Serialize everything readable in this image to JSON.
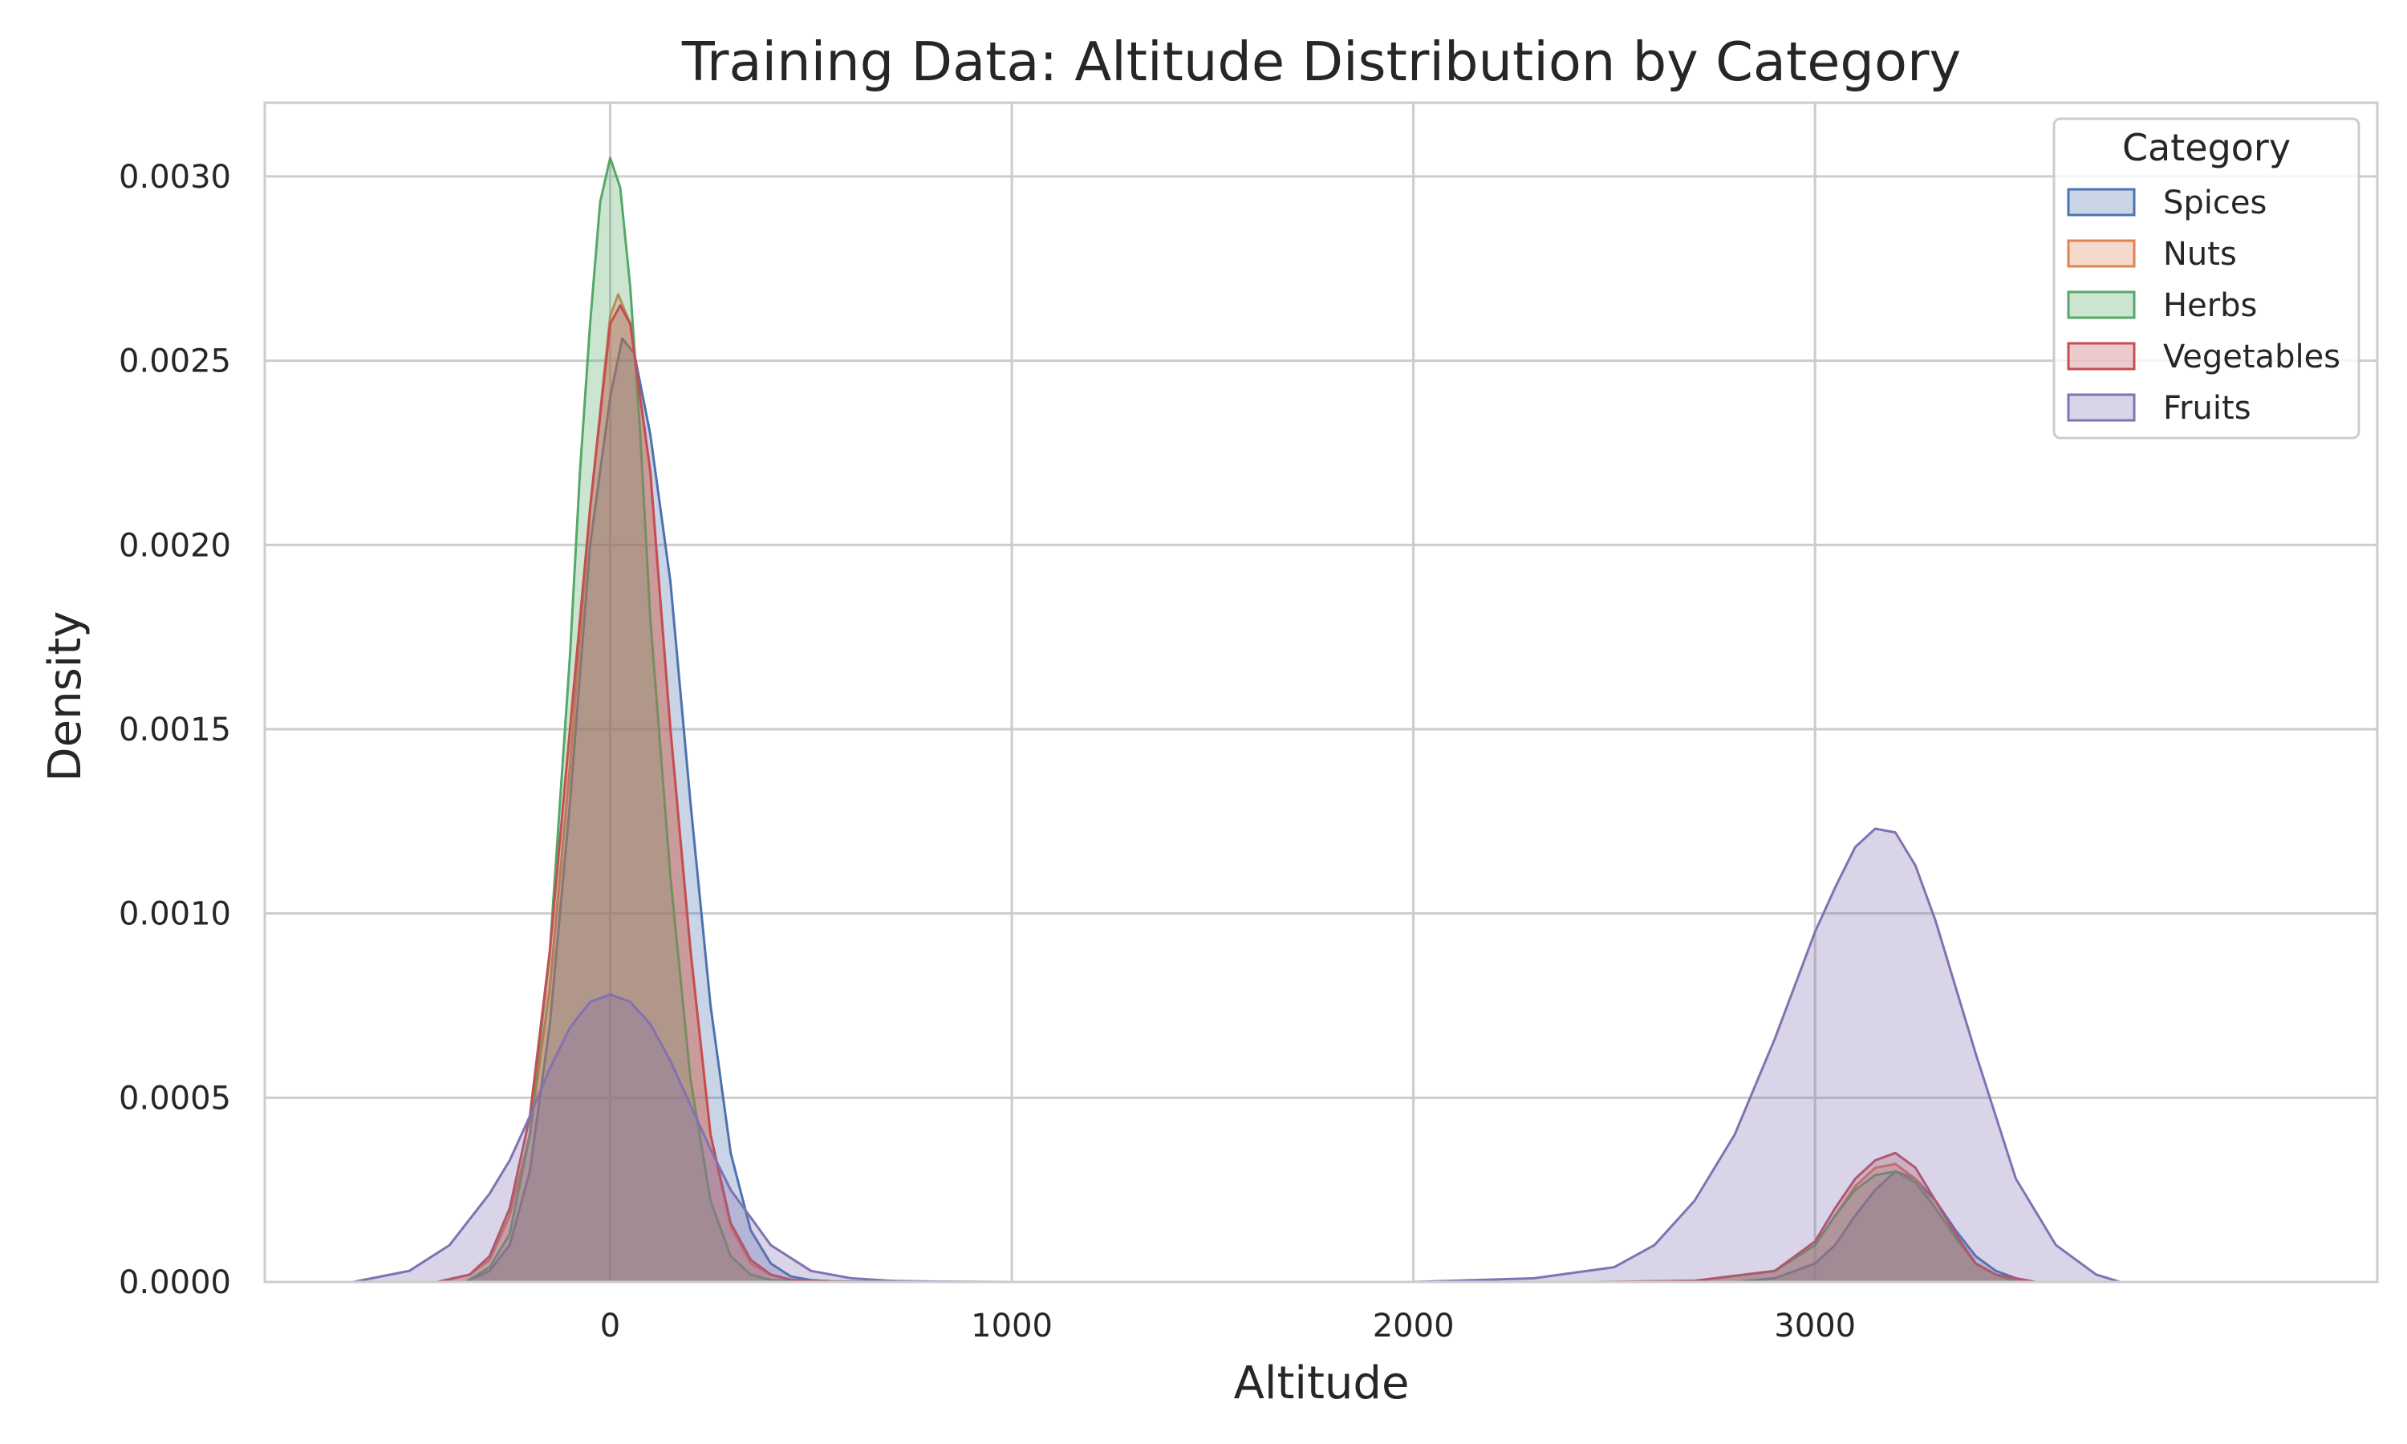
{
  "chart_data": {
    "type": "area",
    "title": "Training Data: Altitude Distribution by Category",
    "xlabel": "Altitude",
    "ylabel": "Density",
    "xlim": [
      -860,
      4400
    ],
    "ylim": [
      0,
      0.0032
    ],
    "x_ticks": [
      0,
      1000,
      2000,
      3000
    ],
    "x_tick_labels": [
      "0",
      "1000",
      "2000",
      "3000"
    ],
    "y_ticks": [
      0,
      0.0005,
      0.001,
      0.0015,
      0.002,
      0.0025,
      0.003
    ],
    "y_tick_labels": [
      "0.0000",
      "0.0005",
      "0.0010",
      "0.0015",
      "0.0020",
      "0.0025",
      "0.0030"
    ],
    "grid": true,
    "legend": {
      "title": "Category",
      "position": "top-right"
    },
    "series": [
      {
        "name": "Spices",
        "color": "#4c72b0",
        "x": [
          -360,
          -300,
          -250,
          -200,
          -150,
          -100,
          -50,
          0,
          30,
          60,
          100,
          150,
          200,
          250,
          300,
          350,
          400,
          450,
          500,
          550,
          600,
          700,
          800,
          900,
          1000,
          2400,
          2600,
          2800,
          2900,
          3000,
          3050,
          3100,
          3150,
          3200,
          3250,
          3300,
          3350,
          3400,
          3450,
          3500,
          3520
        ],
        "y": [
          0,
          3e-05,
          0.0001,
          0.0003,
          0.0007,
          0.0013,
          0.002,
          0.0024,
          0.00256,
          0.00252,
          0.0023,
          0.0019,
          0.0013,
          0.00075,
          0.00035,
          0.00014,
          5e-05,
          1.5e-05,
          5e-06,
          2e-06,
          1e-06,
          0,
          0,
          0,
          0,
          0,
          0,
          0,
          1e-05,
          5e-05,
          0.0001,
          0.00018,
          0.00025,
          0.0003,
          0.00028,
          0.00022,
          0.00014,
          7e-05,
          3e-05,
          1e-05,
          0
        ]
      },
      {
        "name": "Nuts",
        "color": "#dd8452",
        "x": [
          -430,
          -350,
          -300,
          -250,
          -200,
          -150,
          -100,
          -50,
          0,
          20,
          50,
          100,
          150,
          200,
          250,
          300,
          350,
          400,
          450,
          500,
          600,
          700,
          2500,
          2700,
          2900,
          3000,
          3050,
          3100,
          3150,
          3200,
          3250,
          3300,
          3350,
          3400,
          3450,
          3520
        ],
        "y": [
          0,
          2e-05,
          6e-05,
          0.00018,
          0.0004,
          0.0008,
          0.0014,
          0.0021,
          0.00262,
          0.00268,
          0.0026,
          0.0022,
          0.0015,
          0.0009,
          0.0004,
          0.00015,
          5e-05,
          2e-05,
          5e-06,
          2e-06,
          0,
          0,
          0,
          3e-06,
          3e-05,
          0.0001,
          0.00018,
          0.00026,
          0.00031,
          0.00032,
          0.00028,
          0.0002,
          0.00012,
          5e-05,
          2e-05,
          0
        ]
      },
      {
        "name": "Herbs",
        "color": "#55a868",
        "x": [
          -360,
          -300,
          -250,
          -200,
          -150,
          -100,
          -75,
          -50,
          -25,
          0,
          25,
          50,
          75,
          100,
          150,
          200,
          250,
          300,
          350,
          400,
          500,
          2500,
          2700,
          2900,
          3000,
          3050,
          3100,
          3150,
          3200,
          3250,
          3300,
          3350,
          3400,
          3450,
          3500
        ],
        "y": [
          0,
          4e-05,
          0.00013,
          0.0004,
          0.0009,
          0.0017,
          0.0022,
          0.0026,
          0.00293,
          0.00305,
          0.00297,
          0.0027,
          0.0023,
          0.0018,
          0.0011,
          0.00055,
          0.00022,
          7e-05,
          2e-05,
          5e-06,
          0,
          0,
          3e-06,
          3e-05,
          0.0001,
          0.00018,
          0.00025,
          0.00029,
          0.0003,
          0.00027,
          0.0002,
          0.00012,
          5e-05,
          2e-05,
          0
        ]
      },
      {
        "name": "Vegetables",
        "color": "#c44e52",
        "x": [
          -430,
          -350,
          -300,
          -250,
          -200,
          -150,
          -100,
          -50,
          0,
          25,
          50,
          100,
          150,
          200,
          250,
          300,
          350,
          400,
          450,
          500,
          600,
          700,
          2450,
          2700,
          2900,
          3000,
          3050,
          3100,
          3150,
          3200,
          3250,
          3300,
          3350,
          3400,
          3450,
          3550
        ],
        "y": [
          0,
          2e-05,
          7e-05,
          0.0002,
          0.00045,
          0.0009,
          0.0015,
          0.0021,
          0.0026,
          0.00265,
          0.0026,
          0.0022,
          0.0015,
          0.0009,
          0.0004,
          0.00016,
          6e-05,
          2e-05,
          6e-06,
          2e-06,
          0,
          0,
          0,
          3e-06,
          3e-05,
          0.00011,
          0.0002,
          0.00028,
          0.00033,
          0.00035,
          0.00031,
          0.00022,
          0.00013,
          5e-05,
          2e-05,
          0
        ]
      },
      {
        "name": "Fruits",
        "color": "#8172b3",
        "x": [
          -640,
          -500,
          -400,
          -300,
          -250,
          -200,
          -150,
          -100,
          -50,
          0,
          50,
          100,
          150,
          200,
          250,
          300,
          400,
          500,
          600,
          700,
          800,
          1000,
          2000,
          2300,
          2500,
          2600,
          2700,
          2800,
          2900,
          3000,
          3050,
          3100,
          3150,
          3200,
          3250,
          3300,
          3400,
          3500,
          3600,
          3700,
          3760
        ],
        "y": [
          0,
          3e-05,
          0.0001,
          0.00024,
          0.00033,
          0.00045,
          0.00058,
          0.00069,
          0.00076,
          0.00078,
          0.00076,
          0.0007,
          0.0006,
          0.00048,
          0.00036,
          0.00025,
          0.0001,
          3e-05,
          1e-05,
          3e-06,
          1e-06,
          0,
          0,
          1e-05,
          4e-05,
          0.0001,
          0.00022,
          0.0004,
          0.00066,
          0.00095,
          0.00107,
          0.00118,
          0.00123,
          0.00122,
          0.00113,
          0.00098,
          0.00062,
          0.00028,
          0.0001,
          2e-05,
          0
        ]
      }
    ]
  }
}
